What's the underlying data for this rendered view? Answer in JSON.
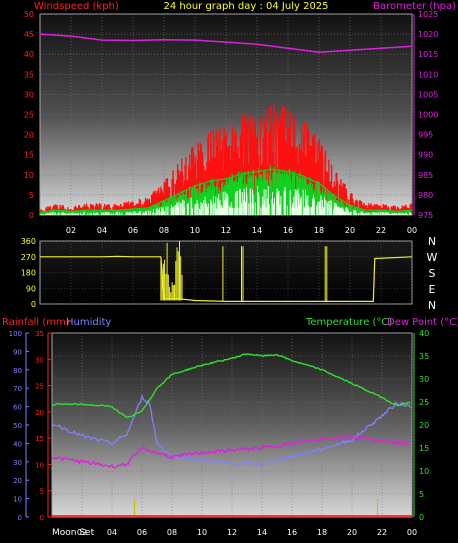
{
  "header": {
    "title": "24 hour graph day : 04 July 2025",
    "wind_label": "Windspeed (kph)",
    "baro_label": "Barometer (hpa)"
  },
  "compass": [
    "N",
    "W",
    "S",
    "E",
    "N"
  ],
  "lower_labels": {
    "rain": "Rainfall (mm)",
    "humidity": "Humidity",
    "temperature": "Temperature (°C)",
    "dewpoint": "Dew Point (°C)"
  },
  "footer": {
    "moon": "Moon Set"
  },
  "colors": {
    "windspeed": "#ff1010",
    "gust_green": "#10d020",
    "gust_white": "#e8ffe8",
    "barometer": "#e020e0",
    "direction": "#f0f030",
    "temperature": "#30e030",
    "dewpoint": "#e020e0",
    "humidity": "#8080ff",
    "rain": "#ff3030"
  },
  "chart_data": [
    {
      "type": "area",
      "series": [
        {
          "name": "Windspeed (kph)",
          "axis": "left",
          "unit": "kph",
          "points": [
            [
              0,
              1
            ],
            [
              1,
              2
            ],
            [
              2,
              1.5
            ],
            [
              3,
              2
            ],
            [
              4,
              2
            ],
            [
              5,
              2
            ],
            [
              6,
              2.5
            ],
            [
              7,
              3
            ],
            [
              8,
              6
            ],
            [
              9,
              9
            ],
            [
              10,
              12
            ],
            [
              11,
              14
            ],
            [
              12,
              15
            ],
            [
              13,
              17
            ],
            [
              14,
              18
            ],
            [
              15,
              19
            ],
            [
              16,
              18
            ],
            [
              17,
              16
            ],
            [
              18,
              13
            ],
            [
              19,
              8
            ],
            [
              20,
              4
            ],
            [
              21,
              2
            ],
            [
              22,
              2
            ],
            [
              23,
              1.5
            ],
            [
              24,
              2
            ]
          ]
        },
        {
          "name": "Barometer (hpa)",
          "axis": "right",
          "unit": "hpa",
          "points": [
            [
              0,
              1020
            ],
            [
              2,
              1019.5
            ],
            [
              4,
              1018.5
            ],
            [
              6,
              1018.4
            ],
            [
              8,
              1018.6
            ],
            [
              10,
              1018.5
            ],
            [
              12,
              1018
            ],
            [
              14,
              1017.5
            ],
            [
              16,
              1016.5
            ],
            [
              18,
              1015.5
            ],
            [
              20,
              1016
            ],
            [
              22,
              1016.5
            ],
            [
              24,
              1017
            ]
          ]
        }
      ],
      "xticks": [
        "02",
        "04",
        "06",
        "08",
        "10",
        "12",
        "14",
        "16",
        "18",
        "20",
        "22",
        "00"
      ],
      "y_left": {
        "min": 0,
        "max": 50,
        "ticks": [
          0,
          5,
          10,
          15,
          20,
          25,
          30,
          35,
          40,
          45,
          50
        ]
      },
      "y_right": {
        "min": 975,
        "max": 1025,
        "ticks": [
          975,
          980,
          985,
          990,
          995,
          1000,
          1005,
          1010,
          1015,
          1020,
          1025
        ]
      },
      "grid": true
    },
    {
      "type": "line",
      "series": [
        {
          "name": "Wind direction",
          "unit": "deg",
          "points": [
            [
              0,
              270
            ],
            [
              1,
              270
            ],
            [
              2,
              270
            ],
            [
              3,
              270
            ],
            [
              4,
              270
            ],
            [
              5,
              272
            ],
            [
              6,
              270
            ],
            [
              7,
              270
            ],
            [
              7.8,
              270
            ],
            [
              8,
              30
            ],
            [
              9,
              30
            ],
            [
              10,
              20
            ],
            [
              12,
              15
            ],
            [
              14,
              15
            ],
            [
              16,
              15
            ],
            [
              18,
              15
            ],
            [
              20,
              15
            ],
            [
              21.5,
              15
            ],
            [
              21.6,
              260
            ],
            [
              24,
              270
            ]
          ]
        }
      ],
      "y_left": {
        "min": 0,
        "max": 360,
        "ticks": [
          0,
          90,
          180,
          270,
          360
        ]
      }
    },
    {
      "type": "line",
      "series": [
        {
          "name": "Temperature (°C)",
          "axis": "right",
          "unit": "°C",
          "points": [
            [
              0,
              24.5
            ],
            [
              2,
              24.5
            ],
            [
              4,
              24
            ],
            [
              5,
              21.5
            ],
            [
              6,
              23
            ],
            [
              7,
              28
            ],
            [
              8,
              31
            ],
            [
              10,
              33
            ],
            [
              12,
              34.5
            ],
            [
              13,
              35.5
            ],
            [
              14,
              35
            ],
            [
              15,
              35.3
            ],
            [
              16,
              34
            ],
            [
              18,
              32
            ],
            [
              20,
              29
            ],
            [
              22,
              26
            ],
            [
              23,
              24.2
            ],
            [
              24,
              25
            ]
          ]
        },
        {
          "name": "Dew Point (°C)",
          "axis": "right",
          "unit": "°C",
          "points": [
            [
              0,
              13
            ],
            [
              2,
              12
            ],
            [
              4,
              11
            ],
            [
              5,
              11.5
            ],
            [
              6,
              15
            ],
            [
              7,
              14
            ],
            [
              8,
              13
            ],
            [
              10,
              14
            ],
            [
              12,
              14.5
            ],
            [
              14,
              15
            ],
            [
              16,
              16
            ],
            [
              18,
              17
            ],
            [
              20,
              17.5
            ],
            [
              22,
              16.5
            ],
            [
              24,
              16
            ]
          ]
        },
        {
          "name": "Humidity",
          "axis": "left",
          "unit": "%",
          "points": [
            [
              0,
              51
            ],
            [
              2,
              44
            ],
            [
              4,
              40
            ],
            [
              5,
              45
            ],
            [
              6,
              65
            ],
            [
              6.5,
              62
            ],
            [
              7,
              40
            ],
            [
              8,
              33
            ],
            [
              10,
              31
            ],
            [
              12,
              29
            ],
            [
              14,
              29
            ],
            [
              16,
              33
            ],
            [
              18,
              37
            ],
            [
              20,
              42
            ],
            [
              22,
              55
            ],
            [
              23,
              62
            ],
            [
              24,
              60
            ]
          ]
        },
        {
          "name": "Rainfall (mm)",
          "axis": "rain",
          "unit": "mm",
          "points": [
            [
              0,
              0
            ],
            [
              24,
              0
            ]
          ]
        }
      ],
      "y_humidity": {
        "min": 0,
        "max": 100,
        "ticks": [
          0,
          10,
          20,
          30,
          40,
          50,
          60,
          70,
          80,
          90,
          100
        ]
      },
      "y_rain": {
        "min": 0,
        "max": 35,
        "ticks": [
          0,
          5,
          10,
          15,
          20,
          25,
          30,
          35
        ]
      },
      "y_temp": {
        "min": 0,
        "max": 40,
        "ticks": [
          0,
          5,
          10,
          15,
          20,
          25,
          30,
          35,
          40
        ]
      },
      "xticks": [
        "02",
        "04",
        "06",
        "08",
        "10",
        "12",
        "14",
        "16",
        "18",
        "20",
        "22",
        "00"
      ],
      "moon_events": [
        5.5,
        21.7
      ],
      "grid": true
    }
  ]
}
